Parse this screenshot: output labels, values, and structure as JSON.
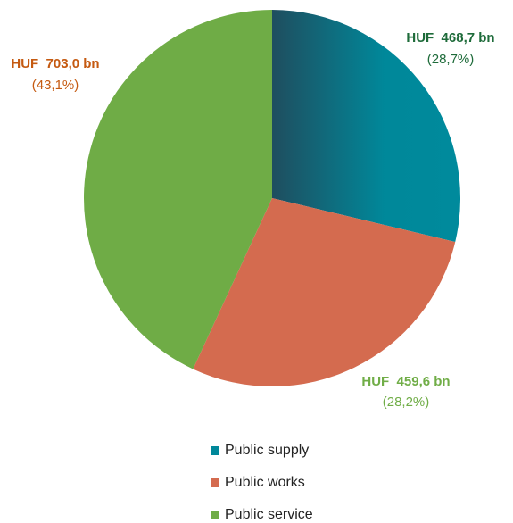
{
  "chart_data": {
    "type": "pie",
    "categories": [
      "Public supply",
      "Public works",
      "Public service"
    ],
    "values": [
      468.7,
      459.6,
      703.0
    ],
    "value_labels": [
      "HUF  468,7 bn",
      "HUF  459,6 bn",
      "HUF  703,0 bn"
    ],
    "share_labels": [
      "(28,7%)",
      "(28,2%)",
      "(43,1%)"
    ],
    "colors": [
      "#00889a",
      "#d46b4f",
      "#6fac46"
    ],
    "label_colors": [
      "#1e6b3a",
      "#70ad47",
      "#c55a11"
    ],
    "legend": "bottom"
  }
}
